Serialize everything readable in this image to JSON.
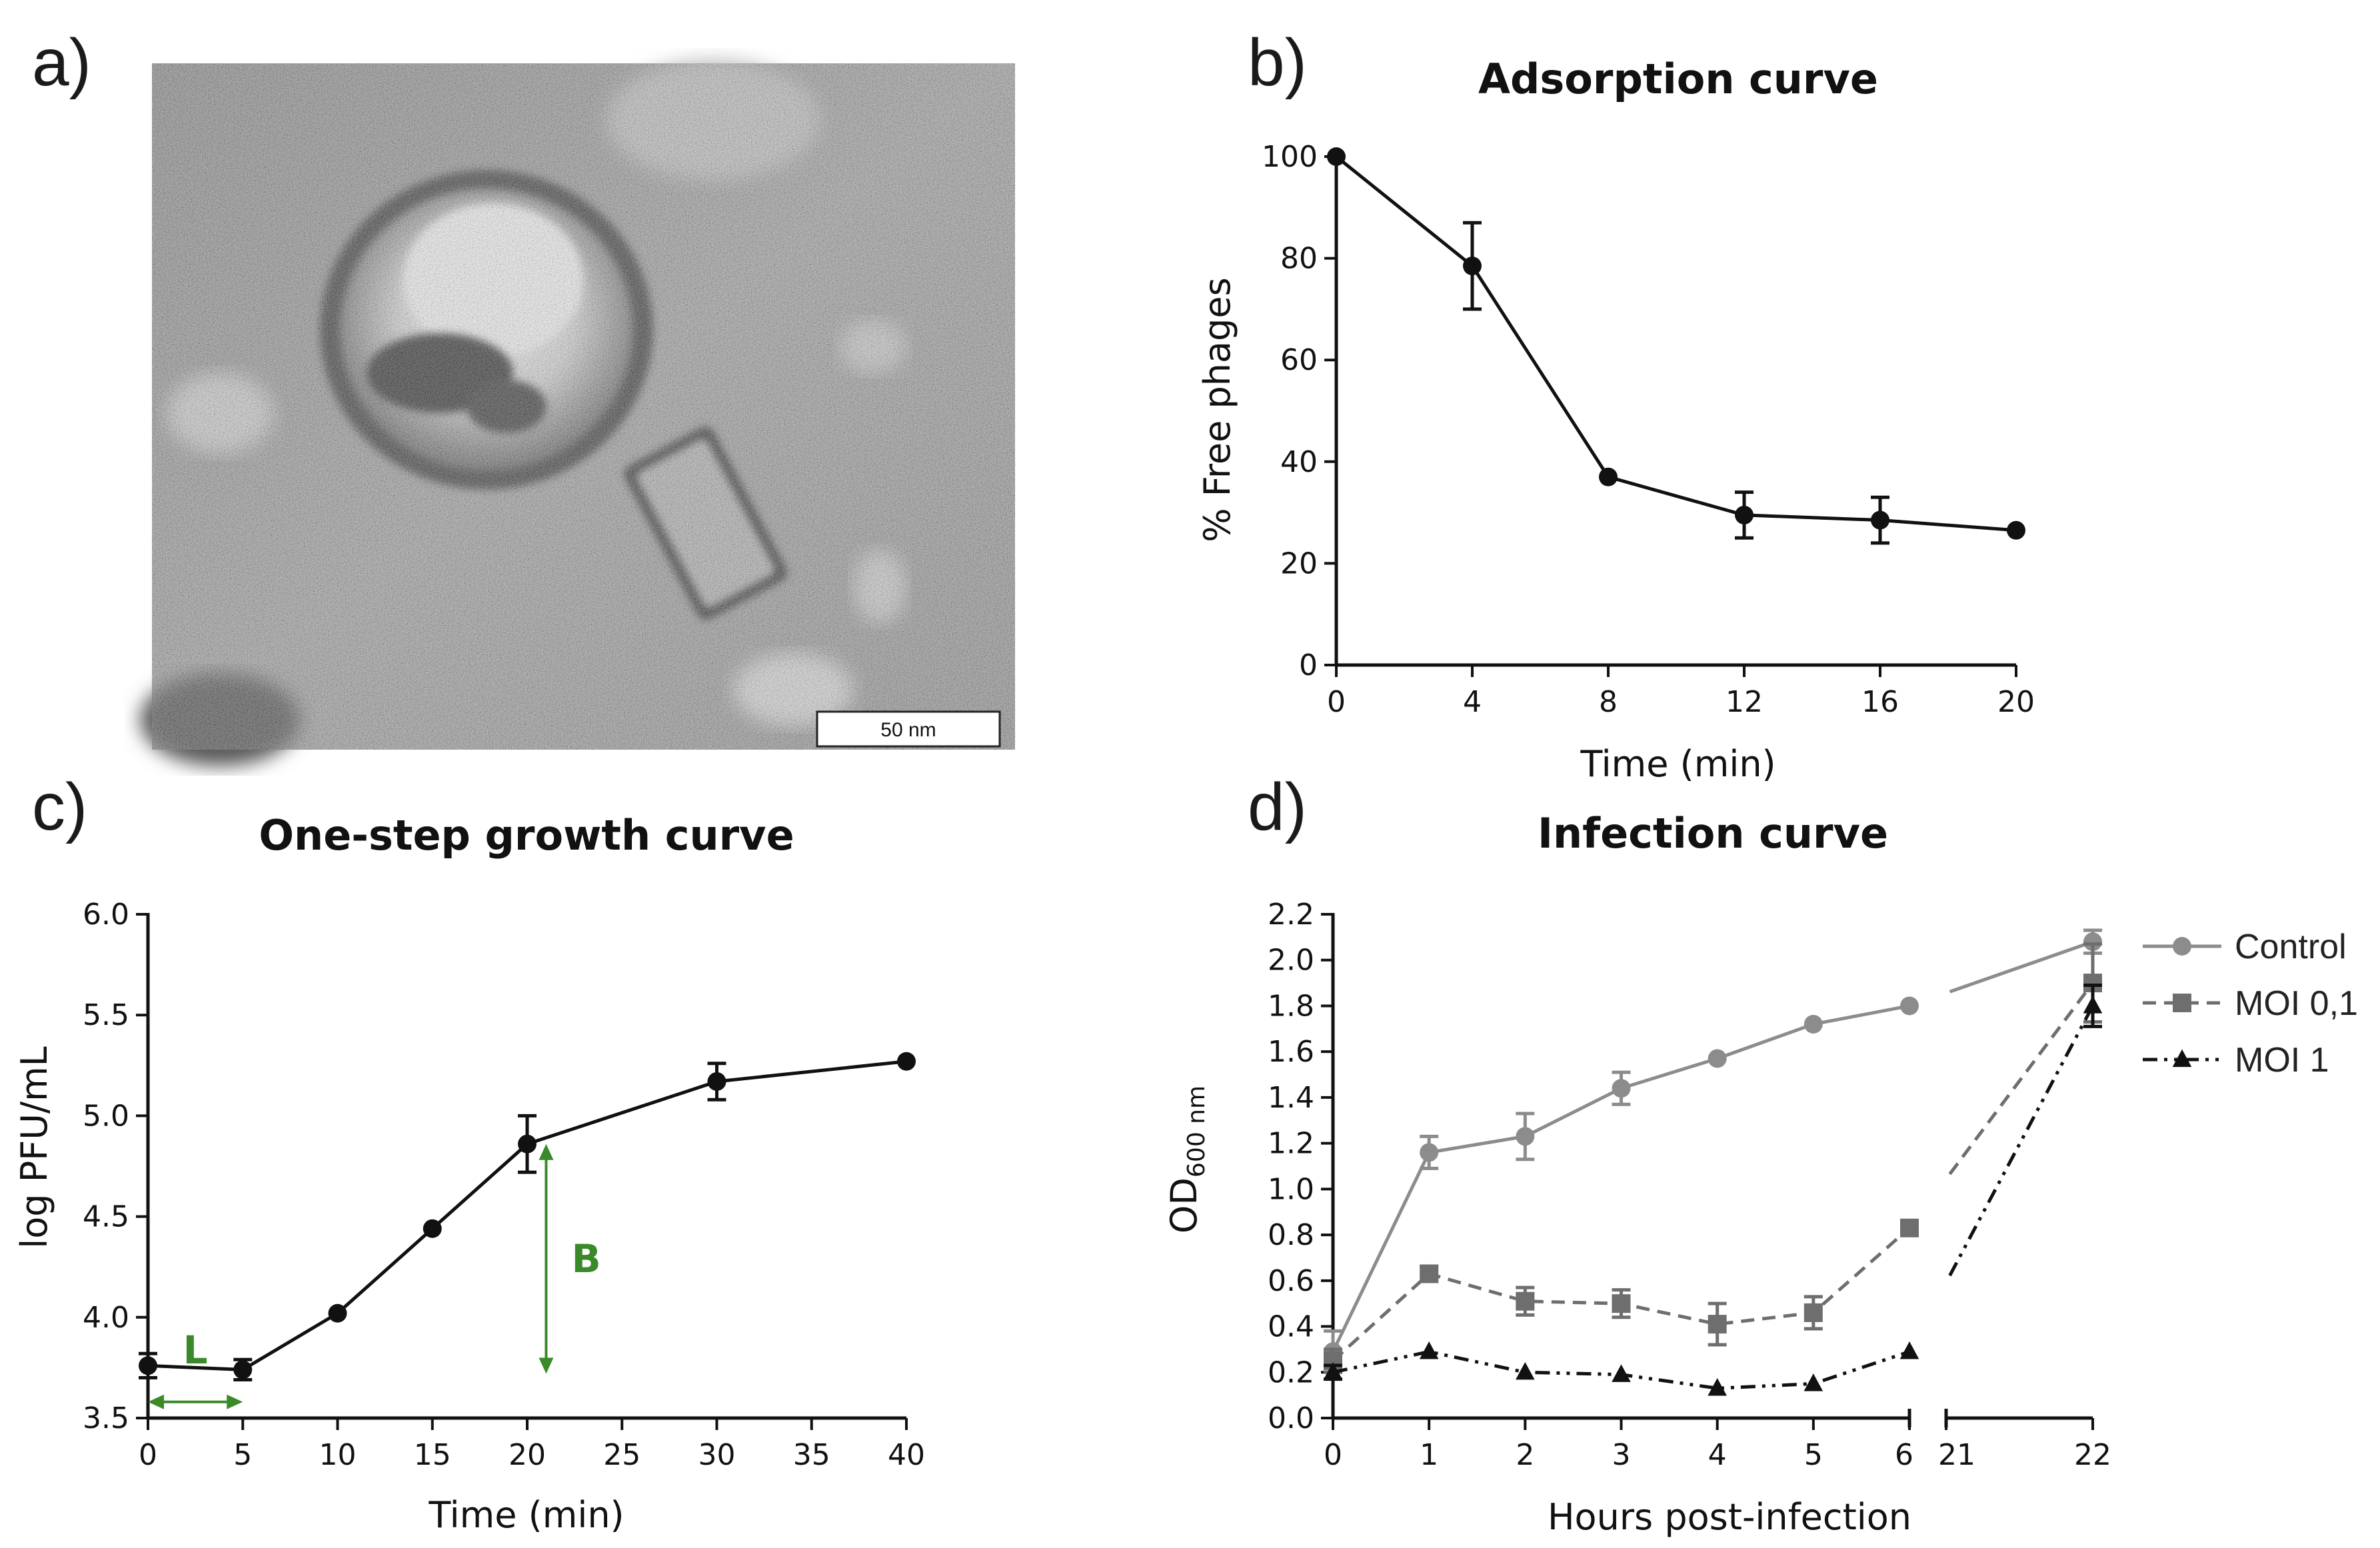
{
  "panel_labels": [
    "a)",
    "b)",
    "c)",
    "d)"
  ],
  "micrograph": {
    "scale_bar_label": "50 nm"
  },
  "colors": {
    "black": "#111111",
    "control": "#8c8c8c",
    "moi01": "#6e6e6e",
    "moi1": "#111111",
    "annotation": "#3a8a2a"
  },
  "chart_data": [
    {
      "type": "line",
      "title": "Adsorption curve",
      "xlabel": "Time (min)",
      "ylabel": "% Free phages",
      "x": [
        0,
        4,
        8,
        12,
        16,
        20
      ],
      "values": [
        100,
        78.5,
        37,
        29.5,
        28.5,
        26.5
      ],
      "errors": [
        0,
        8.5,
        0,
        4.5,
        4.5,
        0
      ],
      "xlim": [
        0,
        20
      ],
      "ylim": [
        0,
        100
      ],
      "xticks": [
        "0",
        "4",
        "8",
        "12",
        "16",
        "20"
      ],
      "yticks": [
        "0",
        "20",
        "40",
        "60",
        "80",
        "100"
      ]
    },
    {
      "type": "line",
      "title": "One-step growth curve",
      "xlabel": "Time (min)",
      "ylabel": "log PFU/mL",
      "x": [
        0,
        5,
        10,
        15,
        20,
        30,
        40
      ],
      "values": [
        3.76,
        3.74,
        4.02,
        4.44,
        4.86,
        5.17,
        5.27
      ],
      "errors": [
        0.06,
        0.05,
        0,
        0,
        0.14,
        0.09,
        0
      ],
      "xlim": [
        0,
        40
      ],
      "ylim": [
        3.5,
        6.0
      ],
      "xticks": [
        "0",
        "5",
        "10",
        "15",
        "20",
        "25",
        "30",
        "35",
        "40"
      ],
      "yticks": [
        "3.5",
        "4.0",
        "4.5",
        "5.0",
        "5.5",
        "6.0"
      ],
      "annotations": [
        {
          "label": "L",
          "meaning": "latent period",
          "x_from": 0,
          "x_to": 5,
          "y": 3.58
        },
        {
          "label": "B",
          "meaning": "burst",
          "x": 21,
          "y_from": 3.72,
          "y_to": 4.86
        }
      ]
    },
    {
      "type": "line",
      "title": "Infection curve",
      "xlabel": "Hours post-infection",
      "ylabel_main": "OD",
      "ylabel_sub": "600 nm",
      "x": [
        0,
        1,
        2,
        3,
        4,
        5,
        6,
        22
      ],
      "xticks": [
        "0",
        "1",
        "2",
        "3",
        "4",
        "5",
        "6",
        "21",
        "22"
      ],
      "x_axis_break": [
        6,
        21
      ],
      "ylim": [
        0,
        2.2
      ],
      "yticks": [
        "0.0",
        "0.2",
        "0.4",
        "0.6",
        "0.8",
        "1.0",
        "1.2",
        "1.4",
        "1.6",
        "1.8",
        "2.0",
        "2.2"
      ],
      "legend_position": "top-right",
      "series": [
        {
          "name": "Control",
          "marker": "circle",
          "line": "solid",
          "values": [
            0.29,
            1.16,
            1.23,
            1.44,
            1.57,
            1.72,
            1.8,
            2.08
          ],
          "errors": [
            0.09,
            0.07,
            0.1,
            0.07,
            0,
            0,
            0,
            0.05
          ]
        },
        {
          "name": "MOI 0,1",
          "marker": "square",
          "line": "dashed",
          "values": [
            0.25,
            0.63,
            0.51,
            0.5,
            0.41,
            0.46,
            0.83,
            1.9
          ],
          "errors": [
            0.05,
            0.03,
            0.06,
            0.06,
            0.09,
            0.07,
            0,
            0.17
          ]
        },
        {
          "name": "MOI 1",
          "marker": "triangle",
          "line": "dash-dot-dot",
          "values": [
            0.2,
            0.29,
            0.2,
            0.19,
            0.13,
            0.15,
            0.29,
            1.8
          ],
          "errors": [
            0.03,
            0,
            0,
            0,
            0,
            0,
            0,
            0.09
          ]
        }
      ]
    }
  ]
}
